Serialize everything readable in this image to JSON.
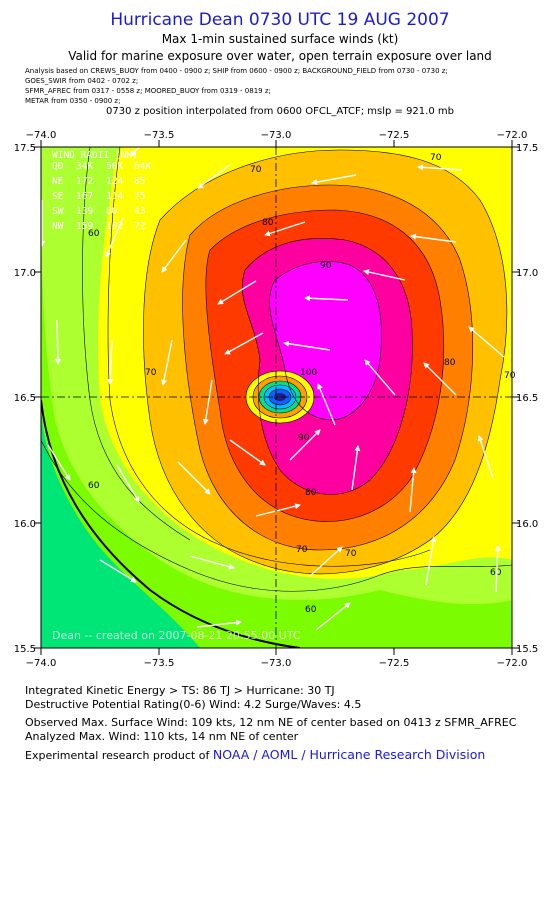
{
  "header": {
    "title": "Hurricane Dean 0730 UTC 19 AUG 2007",
    "subtitle1": "Max 1-min sustained surface winds (kt)",
    "subtitle2": "Valid for marine exposure over water, open terrain exposure over land",
    "analysis_lines": [
      "Analysis based on   CREWS_BUOY from 0400 - 0900 z;   SHIP from 0600 - 0900 z;   BACKGROUND_FIELD from 0730 - 0730 z;",
      "GOES_SWIR from 0402 - 0702 z;",
      "SFMR_AFREC from 0317 - 0558 z;   MOORED_BUOY from 0319 - 0819 z;",
      "METAR from 0350 - 0900 z;"
    ],
    "interp_line": "0730 z position interpolated from 0600 OFCL_ATCF; mslp = 921.0 mb"
  },
  "map": {
    "lon_ticks": [
      "−74.0",
      "−73.5",
      "−73.0",
      "−72.5",
      "−72.0"
    ],
    "lat_ticks": [
      "17.5",
      "17.0",
      "16.5",
      "16.0",
      "15.5"
    ],
    "lon_range": [
      -74.0,
      -72.0
    ],
    "lat_range": [
      15.5,
      17.5
    ],
    "center": {
      "lon": -73.0,
      "lat": 16.5
    },
    "contour_labels": [
      "70",
      "70",
      "70",
      "80",
      "80",
      "80",
      "90",
      "90",
      "100",
      "70",
      "60",
      "60",
      "60",
      "60",
      "70",
      "70"
    ],
    "colors": {
      "lt60": "#00e676",
      "60": "#7cfc00",
      "64": "#adff2f",
      "70": "#ffff00",
      "75": "#ffc000",
      "80": "#ff8000",
      "85": "#ff3a00",
      "90": "#ff00a0",
      "100": "#ff00ff"
    },
    "wind_radii": {
      "header": [
        "WIND RADII (NM)"
      ],
      "columns": [
        "QD",
        "34K",
        "50K",
        "64K"
      ],
      "rows": [
        [
          "NE",
          "172",
          "124",
          "85"
        ],
        [
          "SE",
          "167",
          "114",
          "75"
        ],
        [
          "SW",
          "139",
          "80",
          "43"
        ],
        [
          "NW",
          "159",
          "102",
          "72"
        ]
      ]
    },
    "footnote": "Dean -- created on 2007-08-21 20:55:00 UTC"
  },
  "footer": {
    "ike": "Integrated Kinetic Energy > TS: 86 TJ   > Hurricane: 30 TJ",
    "dpr": "Destructive Potential Rating(0-6)   Wind: 4.2 Surge/Waves: 4.5",
    "obs_max": "Observed Max. Surface Wind: 109 kts, 12 nm NE of center based on 0413 z SFMR_AFREC",
    "ana_max": "Analyzed Max. Wind: 110 kts, 14 nm NE of center",
    "credit_prefix": "Experimental research product of ",
    "credit_link": "NOAA / AOML / Hurricane Research Division"
  }
}
